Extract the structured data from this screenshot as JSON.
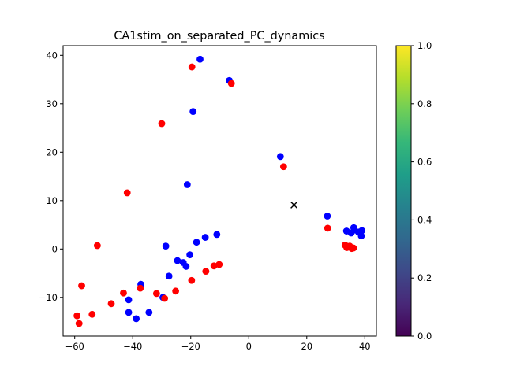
{
  "chart_data": {
    "type": "scatter",
    "title": "CA1stim_on_separated_PC_dynamics",
    "xlabel": "",
    "ylabel": "",
    "xlim": [
      -64,
      44
    ],
    "ylim": [
      -18,
      42
    ],
    "x_ticks": [
      -60,
      -40,
      -20,
      0,
      20,
      40
    ],
    "y_ticks": [
      -10,
      0,
      10,
      20,
      30,
      40
    ],
    "series": [
      {
        "color": "#0000ff",
        "marker": "circle",
        "points": [
          [
            -16.8,
            39.2
          ],
          [
            -6.7,
            34.8
          ],
          [
            -19.2,
            28.4
          ],
          [
            10.9,
            19.1
          ],
          [
            -21.2,
            13.3
          ],
          [
            27.1,
            6.8
          ],
          [
            -28.6,
            0.6
          ],
          [
            -18,
            1.4
          ],
          [
            -15,
            2.4
          ],
          [
            -11,
            3.0
          ],
          [
            -24.6,
            -2.4
          ],
          [
            -22.6,
            -2.8
          ],
          [
            -21.6,
            -3.6
          ],
          [
            -20.3,
            -1.2
          ],
          [
            -27.5,
            -5.6
          ],
          [
            -37.2,
            -7.3
          ],
          [
            -29.6,
            -10
          ],
          [
            -41.4,
            -10.5
          ],
          [
            -41.4,
            -13.1
          ],
          [
            -38.8,
            -14.4
          ],
          [
            -34.4,
            -13.1
          ],
          [
            33.7,
            3.7
          ],
          [
            35.3,
            3.3
          ],
          [
            36.2,
            4.4
          ],
          [
            37.8,
            3.5
          ],
          [
            39,
            3.8
          ],
          [
            38.8,
            2.7
          ],
          [
            36.3,
            3.9
          ]
        ]
      },
      {
        "color": "#ff0000",
        "marker": "circle",
        "points": [
          [
            -19.6,
            37.6
          ],
          [
            -6,
            34.2
          ],
          [
            -30,
            25.9
          ],
          [
            12,
            17
          ],
          [
            -41.9,
            11.6
          ],
          [
            27.2,
            4.3
          ],
          [
            -52.2,
            0.7
          ],
          [
            -57.6,
            -7.6
          ],
          [
            -59.2,
            -13.8
          ],
          [
            -58.5,
            -15.4
          ],
          [
            -54,
            -13.5
          ],
          [
            -47.4,
            -11.3
          ],
          [
            -43.2,
            -9.1
          ],
          [
            -37.4,
            -8.1
          ],
          [
            -31.8,
            -9.2
          ],
          [
            -29,
            -10.2
          ],
          [
            -25.2,
            -8.7
          ],
          [
            -19.7,
            -6.5
          ],
          [
            -14.8,
            -4.6
          ],
          [
            -12,
            -3.5
          ],
          [
            -10.2,
            -3.2
          ],
          [
            33.2,
            0.8
          ],
          [
            33.8,
            0.3
          ],
          [
            34.8,
            0.6
          ],
          [
            35.5,
            0.1
          ],
          [
            36.1,
            0.2
          ]
        ]
      },
      {
        "color": "#000000",
        "marker": "x",
        "points": [
          [
            15.6,
            9.1
          ]
        ]
      }
    ],
    "colorbar": {
      "colormap": "viridis",
      "range": [
        0,
        1
      ],
      "ticks": [
        "0.0",
        "0.2",
        "0.4",
        "0.6",
        "0.8",
        "1.0"
      ],
      "stops": [
        "#440154",
        "#482878",
        "#3e4989",
        "#31688e",
        "#26828e",
        "#1f9e89",
        "#35b779",
        "#6ece58",
        "#b5de2b",
        "#fde725"
      ]
    }
  }
}
